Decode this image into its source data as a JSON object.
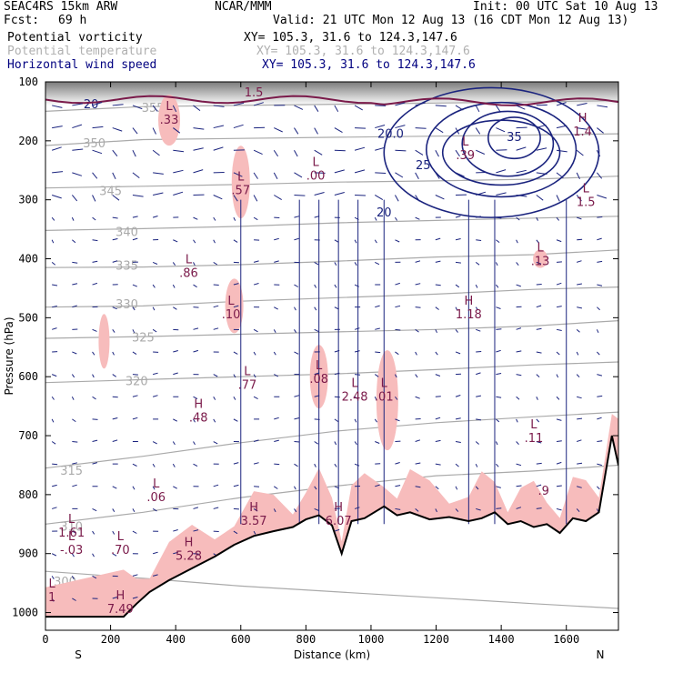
{
  "header": {
    "model": "SEAC4RS 15km ARW",
    "fcst_label": "Fcst:",
    "fcst_value": "69 h",
    "center": "NCAR/MMM",
    "init": "Init: 00 UTC Sat 10 Aug 13",
    "valid": "Valid: 21 UTC Mon 12 Aug 13 (16 CDT Mon 12 Aug 13)",
    "fields": [
      {
        "name": "Potential vorticity",
        "xy": "XY= 105.3, 31.6 to 124.3,147.6"
      },
      {
        "name": "Potential temperature",
        "xy": "XY= 105.3, 31.6 to 124.3,147.6"
      },
      {
        "name": "Horizontal wind speed",
        "xy": "XY= 105.3, 31.6 to 124.3,147.6"
      }
    ]
  },
  "colors": {
    "pv_fill": "#f7bcbc",
    "pv_line": "#7a1a4a",
    "theta": "#aaaaaa",
    "wind": "#1a237e",
    "terrain": "#000000",
    "header_blue": "#000080",
    "header_grey": "#b0b0b0"
  },
  "chart_data": {
    "type": "cross-section",
    "xlabel": "Distance (km)",
    "ylabel": "Pressure (hPa)",
    "x_ticks": [
      0,
      200,
      400,
      600,
      800,
      1000,
      1200,
      1400,
      1600
    ],
    "y_ticks": [
      100,
      200,
      300,
      400,
      500,
      600,
      700,
      800,
      900,
      1000
    ],
    "xlim": [
      0,
      1760
    ],
    "ylim": [
      1030,
      100
    ],
    "end_labels": {
      "left": "S",
      "right": "N"
    },
    "terrain": {
      "x": [
        0,
        240,
        280,
        320,
        380,
        450,
        520,
        580,
        640,
        700,
        760,
        800,
        840,
        880,
        910,
        940,
        980,
        1040,
        1080,
        1120,
        1180,
        1240,
        1300,
        1340,
        1380,
        1420,
        1460,
        1500,
        1540,
        1580,
        1620,
        1660,
        1700,
        1740,
        1760
      ],
      "p": [
        1007,
        1007,
        985,
        965,
        945,
        925,
        905,
        885,
        870,
        862,
        855,
        842,
        835,
        852,
        900,
        845,
        840,
        820,
        835,
        830,
        842,
        838,
        845,
        840,
        830,
        850,
        845,
        855,
        850,
        865,
        840,
        845,
        830,
        700,
        750
      ]
    },
    "theta_contours": [
      {
        "value": 300,
        "label_x": 60,
        "label_p": 948,
        "p": [
          930,
          942,
          955,
          965,
          975,
          985,
          993
        ]
      },
      {
        "value": 310,
        "label_x": 80,
        "label_p": 855,
        "p": [
          850,
          830,
          805,
          785,
          768,
          760,
          750
        ]
      },
      {
        "value": 315,
        "label_x": 80,
        "label_p": 760,
        "p": [
          755,
          735,
          712,
          692,
          678,
          668,
          660
        ]
      },
      {
        "value": 320,
        "label_x": 280,
        "label_p": 608,
        "p": [
          610,
          605,
          600,
          595,
          588,
          580,
          575
        ]
      },
      {
        "value": 325,
        "label_x": 300,
        "label_p": 534,
        "p": [
          535,
          532,
          528,
          524,
          520,
          514,
          505
        ]
      },
      {
        "value": 330,
        "label_x": 250,
        "label_p": 478,
        "p": [
          482,
          480,
          472,
          466,
          460,
          452,
          448
        ]
      },
      {
        "value": 335,
        "label_x": 250,
        "label_p": 412,
        "p": [
          415,
          414,
          410,
          404,
          397,
          393,
          385
        ]
      },
      {
        "value": 340,
        "label_x": 250,
        "label_p": 355,
        "p": [
          352,
          349,
          345,
          339,
          335,
          331,
          328
        ]
      },
      {
        "value": 345,
        "label_x": 200,
        "label_p": 286,
        "p": [
          280,
          277,
          274,
          270,
          268,
          265,
          260
        ]
      },
      {
        "value": 350,
        "label_x": 150,
        "label_p": 205,
        "p": [
          208,
          198,
          196,
          194,
          192,
          190,
          188
        ]
      },
      {
        "value": 355,
        "label_x": 330,
        "label_p": 145,
        "p": [
          150,
          142,
          140,
          138,
          136,
          134,
          132
        ]
      }
    ],
    "theta_x": [
      0,
      300,
      600,
      900,
      1200,
      1500,
      1760
    ],
    "wind_speed_contours": [
      {
        "value": 20,
        "cx": 1400,
        "cp": 220,
        "rx": 180,
        "rp": 55
      },
      {
        "value": 20,
        "cx": 1370,
        "cp": 220,
        "rx": 330,
        "rp": 110
      },
      {
        "value": 25,
        "cx": 1400,
        "cp": 215,
        "rx": 230,
        "rp": 80
      },
      {
        "value": 30,
        "cx": 1420,
        "cp": 205,
        "rx": 140,
        "rp": 55
      },
      {
        "value": 35,
        "cx": 1440,
        "cp": 195,
        "rx": 80,
        "rp": 35
      }
    ],
    "wind_speed_labels": [
      {
        "text": "20",
        "x": 140,
        "p": 145
      },
      {
        "text": "20.0",
        "x": 1060,
        "p": 195
      },
      {
        "text": "25",
        "x": 1160,
        "p": 248
      },
      {
        "text": "20",
        "x": 1040,
        "p": 328
      },
      {
        "text": "35",
        "x": 1440,
        "p": 200
      }
    ],
    "pv_extrema": [
      {
        "kind": "L",
        "value": ".33",
        "x": 380,
        "p": 160
      },
      {
        "kind": "L",
        "value": ".57",
        "x": 600,
        "p": 280
      },
      {
        "kind": "L",
        "value": ".00",
        "x": 830,
        "p": 255
      },
      {
        "kind": "L",
        "value": ".39",
        "x": 1290,
        "p": 220
      },
      {
        "kind": "L",
        "value": ".86",
        "x": 440,
        "p": 420
      },
      {
        "kind": "L",
        "value": ".10",
        "x": 570,
        "p": 490
      },
      {
        "kind": "H",
        "value": "1.18",
        "x": 1300,
        "p": 490
      },
      {
        "kind": "L",
        "value": ".13",
        "x": 1520,
        "p": 400
      },
      {
        "kind": "L",
        "value": ".77",
        "x": 620,
        "p": 610
      },
      {
        "kind": "L",
        "value": ".08",
        "x": 840,
        "p": 600
      },
      {
        "kind": "L",
        "value": "2.48",
        "x": 950,
        "p": 630
      },
      {
        "kind": "L",
        "value": ".01",
        "x": 1040,
        "p": 630
      },
      {
        "kind": "H",
        "value": ".48",
        "x": 470,
        "p": 665
      },
      {
        "kind": "L",
        "value": ".11",
        "x": 1500,
        "p": 700
      },
      {
        "kind": "L",
        "value": ".06",
        "x": 340,
        "p": 800
      },
      {
        "kind": "H",
        "value": "3.57",
        "x": 640,
        "p": 840
      },
      {
        "kind": "H",
        "value": "6.07",
        "x": 900,
        "p": 840
      },
      {
        "kind": "L",
        "value": "1.61",
        "x": 80,
        "p": 860
      },
      {
        "kind": "L",
        "value": "-.03",
        "x": 80,
        "p": 890
      },
      {
        "kind": "L",
        "value": ".70",
        "x": 230,
        "p": 890
      },
      {
        "kind": "H",
        "value": "5.28",
        "x": 440,
        "p": 900
      },
      {
        "kind": "H",
        "value": "7.49",
        "x": 230,
        "p": 990
      },
      {
        "kind": "H",
        "value": "1.4",
        "x": 1650,
        "p": 180
      },
      {
        "kind": "L",
        "value": "1.5",
        "x": 1660,
        "p": 300
      },
      {
        "kind": "L",
        "value": "1",
        "x": 20,
        "p": 970
      }
    ],
    "pv_contour_labels": [
      {
        "text": "1.5",
        "x": 640,
        "p": 125
      },
      {
        "text": ".9",
        "x": 1530,
        "p": 800
      }
    ]
  }
}
